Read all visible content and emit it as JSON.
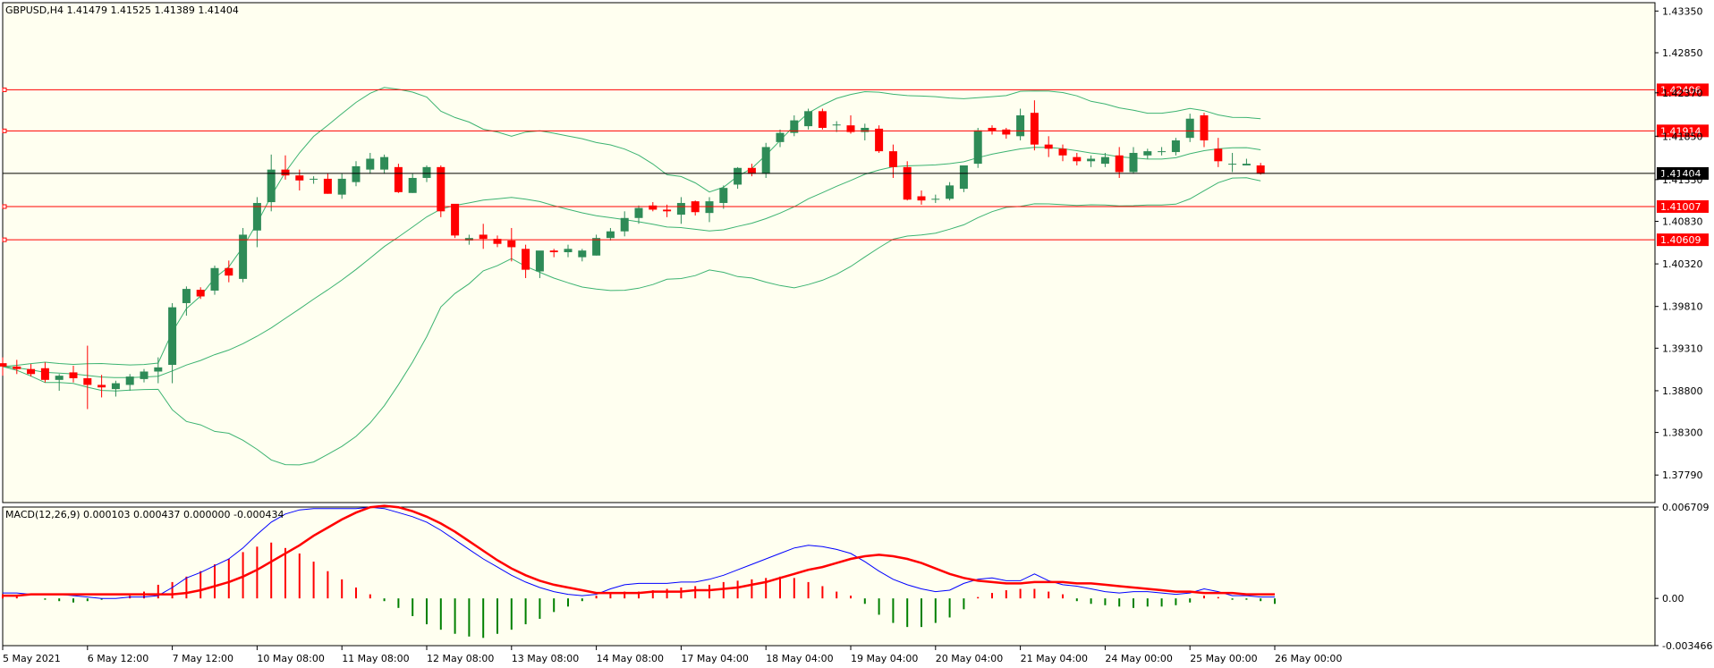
{
  "chart_data": [
    {
      "type": "candlestick",
      "symbol": "GBPUSD,H4",
      "title": "GBPUSD,H4  1.41479 1.41525 1.41389 1.41404",
      "ohlc_text": "1.41479 1.41525 1.41389 1.41404",
      "last_price": "1.41404",
      "yticks": [
        "1.43350",
        "1.42850",
        "1.42370",
        "1.41850",
        "1.41330",
        "1.40830",
        "1.40320",
        "1.39810",
        "1.39310",
        "1.38800",
        "1.38300",
        "1.37790"
      ],
      "ylim": [
        1.3746,
        1.4345
      ],
      "xticks": [
        "5 May 2021",
        "6 May 12:00",
        "7 May 12:00",
        "10 May 08:00",
        "11 May 08:00",
        "12 May 08:00",
        "13 May 08:00",
        "14 May 08:00",
        "17 May 04:00",
        "18 May 04:00",
        "19 May 04:00",
        "20 May 04:00",
        "21 May 04:00",
        "24 May 00:00",
        "25 May 00:00",
        "26 May 00:00"
      ],
      "horizontal_levels": [
        {
          "label": "1.42406",
          "value": 1.42406,
          "color": "#ff0000"
        },
        {
          "label": "1.41914",
          "value": 1.41914,
          "color": "#ff0000"
        },
        {
          "label": "1.41007",
          "value": 1.41007,
          "color": "#ff0000"
        },
        {
          "label": "1.40609",
          "value": 1.40609,
          "color": "#ff0000"
        }
      ],
      "colors": {
        "bull": "#2e8b57",
        "bear": "#ff0000",
        "bands": "#3cb371",
        "background": "#fffff0",
        "price_line": "#000000"
      },
      "candles": [
        [
          1.3913,
          1.392,
          1.3898,
          1.3909
        ],
        [
          1.3909,
          1.3917,
          1.39,
          1.3906
        ],
        [
          1.3906,
          1.3912,
          1.3897,
          1.39
        ],
        [
          1.3907,
          1.3914,
          1.389,
          1.3893
        ],
        [
          1.3893,
          1.39,
          1.388,
          1.3898
        ],
        [
          1.3902,
          1.391,
          1.389,
          1.3895
        ],
        [
          1.3895,
          1.3934,
          1.3858,
          1.3887
        ],
        [
          1.3887,
          1.3899,
          1.3872,
          1.3884
        ],
        [
          1.3882,
          1.3892,
          1.3873,
          1.3889
        ],
        [
          1.3887,
          1.39,
          1.388,
          1.3897
        ],
        [
          1.3894,
          1.3906,
          1.389,
          1.3903
        ],
        [
          1.3903,
          1.392,
          1.3889,
          1.3908
        ],
        [
          1.3911,
          1.3985,
          1.3889,
          1.398
        ],
        [
          1.3985,
          1.4005,
          1.397,
          1.4002
        ],
        [
          1.4001,
          1.4004,
          1.399,
          1.3993
        ],
        [
          1.4,
          1.403,
          1.3995,
          1.4027
        ],
        [
          1.4027,
          1.4036,
          1.401,
          1.4018
        ],
        [
          1.4014,
          1.4075,
          1.401,
          1.4067
        ],
        [
          1.4072,
          1.4112,
          1.4052,
          1.4105
        ],
        [
          1.4106,
          1.4163,
          1.4095,
          1.4145
        ],
        [
          1.4145,
          1.4162,
          1.4133,
          1.4138
        ],
        [
          1.4138,
          1.4145,
          1.412,
          1.4132
        ],
        [
          1.4133,
          1.4137,
          1.4128,
          1.4134
        ],
        [
          1.4134,
          1.414,
          1.4116,
          1.4116
        ],
        [
          1.4115,
          1.414,
          1.411,
          1.4134
        ],
        [
          1.413,
          1.4155,
          1.4125,
          1.4149
        ],
        [
          1.4145,
          1.4165,
          1.414,
          1.4158
        ],
        [
          1.4145,
          1.4163,
          1.414,
          1.416
        ],
        [
          1.4148,
          1.4152,
          1.4117,
          1.4118
        ],
        [
          1.4117,
          1.414,
          1.4117,
          1.4135
        ],
        [
          1.4135,
          1.415,
          1.413,
          1.4148
        ],
        [
          1.4148,
          1.415,
          1.4088,
          1.4095
        ],
        [
          1.4104,
          1.4102,
          1.4063,
          1.4066
        ],
        [
          1.406,
          1.4067,
          1.4055,
          1.4063
        ],
        [
          1.4067,
          1.408,
          1.405,
          1.4062
        ],
        [
          1.4062,
          1.4066,
          1.4052,
          1.4056
        ],
        [
          1.406,
          1.4075,
          1.4035,
          1.4052
        ],
        [
          1.405,
          1.4055,
          1.4015,
          1.4025
        ],
        [
          1.4023,
          1.4045,
          1.4015,
          1.4048
        ],
        [
          1.4048,
          1.405,
          1.404,
          1.4046
        ],
        [
          1.4046,
          1.4055,
          1.404,
          1.405
        ],
        [
          1.404,
          1.405,
          1.4035,
          1.4048
        ],
        [
          1.4042,
          1.4067,
          1.4042,
          1.4063
        ],
        [
          1.4063,
          1.4075,
          1.406,
          1.4071
        ],
        [
          1.4071,
          1.4095,
          1.4065,
          1.4087
        ],
        [
          1.4087,
          1.4102,
          1.408,
          1.4099
        ],
        [
          1.4102,
          1.4106,
          1.4095,
          1.4097
        ],
        [
          1.4097,
          1.4103,
          1.4088,
          1.4095
        ],
        [
          1.4091,
          1.4112,
          1.408,
          1.4105
        ],
        [
          1.4107,
          1.4108,
          1.409,
          1.4094
        ],
        [
          1.4093,
          1.4112,
          1.4082,
          1.4107
        ],
        [
          1.4105,
          1.4126,
          1.4098,
          1.4123
        ],
        [
          1.4127,
          1.4148,
          1.4122,
          1.4147
        ],
        [
          1.4147,
          1.4152,
          1.4137,
          1.414
        ],
        [
          1.414,
          1.4177,
          1.4135,
          1.4172
        ],
        [
          1.4178,
          1.4193,
          1.4172,
          1.4189
        ],
        [
          1.4189,
          1.421,
          1.4185,
          1.4204
        ],
        [
          1.4197,
          1.4218,
          1.4193,
          1.4215
        ],
        [
          1.4215,
          1.4218,
          1.4193,
          1.4195
        ],
        [
          1.4198,
          1.4203,
          1.419,
          1.4199
        ],
        [
          1.4198,
          1.421,
          1.4188,
          1.419
        ],
        [
          1.419,
          1.42,
          1.418,
          1.4195
        ],
        [
          1.4194,
          1.4198,
          1.4165,
          1.4167
        ],
        [
          1.4167,
          1.4175,
          1.4135,
          1.4148
        ],
        [
          1.4148,
          1.4155,
          1.4108,
          1.4109
        ],
        [
          1.4113,
          1.412,
          1.4103,
          1.4108
        ],
        [
          1.4109,
          1.4115,
          1.4105,
          1.411
        ],
        [
          1.411,
          1.413,
          1.4108,
          1.4126
        ],
        [
          1.4122,
          1.415,
          1.4118,
          1.415
        ],
        [
          1.4152,
          1.4195,
          1.4147,
          1.4192
        ],
        [
          1.4195,
          1.4198,
          1.4187,
          1.4191
        ],
        [
          1.4193,
          1.4195,
          1.4182,
          1.4187
        ],
        [
          1.4185,
          1.4218,
          1.418,
          1.421
        ],
        [
          1.4213,
          1.4228,
          1.4168,
          1.4175
        ],
        [
          1.4175,
          1.4185,
          1.416,
          1.417
        ],
        [
          1.417,
          1.4175,
          1.4155,
          1.4162
        ],
        [
          1.416,
          1.4165,
          1.415,
          1.4155
        ],
        [
          1.4155,
          1.4162,
          1.4148,
          1.4158
        ],
        [
          1.4152,
          1.4165,
          1.4148,
          1.416
        ],
        [
          1.4162,
          1.4172,
          1.4135,
          1.4142
        ],
        [
          1.4142,
          1.4172,
          1.414,
          1.4165
        ],
        [
          1.4162,
          1.417,
          1.4158,
          1.4167
        ],
        [
          1.4166,
          1.4172,
          1.4162,
          1.4167
        ],
        [
          1.4166,
          1.4183,
          1.4162,
          1.418
        ],
        [
          1.4183,
          1.4212,
          1.4178,
          1.4206
        ],
        [
          1.421,
          1.4213,
          1.4172,
          1.418
        ],
        [
          1.417,
          1.4183,
          1.4148,
          1.4155
        ],
        [
          1.4152,
          1.4165,
          1.4142,
          1.4152
        ],
        [
          1.415,
          1.4158,
          1.415,
          1.4152
        ],
        [
          1.415,
          1.4153,
          1.4139,
          1.414
        ]
      ]
    },
    {
      "type": "line",
      "title": "MACD(12,26,9) 0.000103 0.000437 0.000000 -0.000434",
      "yticks": [
        "0.006709",
        "0.00",
        "-0.003466"
      ],
      "ylim": [
        -0.00347,
        0.00671
      ],
      "series": [
        {
          "name": "main",
          "color": "#0000ff",
          "values": [
            0.0004,
            0.0004,
            0.0003,
            0.0003,
            0.0003,
            0.0002,
            0.0001,
            0.0,
            0.0,
            0.0001,
            0.0001,
            0.0002,
            0.0008,
            0.0015,
            0.0019,
            0.0024,
            0.0029,
            0.0037,
            0.0047,
            0.0056,
            0.0062,
            0.0065,
            0.0066,
            0.0066,
            0.0066,
            0.0066,
            0.0067,
            0.0066,
            0.0063,
            0.006,
            0.0056,
            0.005,
            0.0043,
            0.0036,
            0.0029,
            0.0023,
            0.0017,
            0.0012,
            0.0008,
            0.0005,
            0.0003,
            0.0002,
            0.0003,
            0.0007,
            0.001,
            0.0011,
            0.0011,
            0.0011,
            0.0012,
            0.0012,
            0.0014,
            0.0017,
            0.0021,
            0.0025,
            0.0029,
            0.0033,
            0.0037,
            0.0039,
            0.0038,
            0.0036,
            0.0033,
            0.0027,
            0.002,
            0.0014,
            0.001,
            0.0007,
            0.0005,
            0.0006,
            0.0011,
            0.0014,
            0.0015,
            0.0013,
            0.0013,
            0.0018,
            0.0013,
            0.001,
            0.0009,
            0.0007,
            0.0005,
            0.0004,
            0.0005,
            0.0005,
            0.0004,
            0.0003,
            0.0004,
            0.0007,
            0.0005,
            0.0002,
            0.0002,
            0.0001,
            0.0001
          ]
        },
        {
          "name": "signal",
          "color": "#ff0000",
          "values": [
            0.0002,
            0.0002,
            0.0003,
            0.0003,
            0.0003,
            0.0003,
            0.0003,
            0.0003,
            0.0003,
            0.0003,
            0.0003,
            0.0003,
            0.0003,
            0.0004,
            0.0006,
            0.0009,
            0.0012,
            0.0016,
            0.0021,
            0.0027,
            0.0033,
            0.0039,
            0.0046,
            0.0052,
            0.0058,
            0.0063,
            0.0067,
            0.0068,
            0.0067,
            0.0064,
            0.006,
            0.0055,
            0.0049,
            0.0042,
            0.0035,
            0.0028,
            0.0022,
            0.0017,
            0.0013,
            0.001,
            0.0008,
            0.0006,
            0.0004,
            0.0004,
            0.0004,
            0.0004,
            0.0005,
            0.0005,
            0.0005,
            0.0006,
            0.0006,
            0.0007,
            0.0008,
            0.001,
            0.0012,
            0.0015,
            0.0018,
            0.0021,
            0.0023,
            0.0026,
            0.0029,
            0.0031,
            0.0032,
            0.0031,
            0.0029,
            0.0026,
            0.0022,
            0.0018,
            0.0015,
            0.0013,
            0.0012,
            0.0011,
            0.0011,
            0.0012,
            0.0012,
            0.0012,
            0.0011,
            0.0011,
            0.001,
            0.0009,
            0.0008,
            0.0007,
            0.0006,
            0.0005,
            0.0005,
            0.0004,
            0.0004,
            0.0004,
            0.0003,
            0.0003,
            0.0003
          ]
        },
        {
          "name": "histogram",
          "color": "#008000",
          "values": [
            0.0003,
            0.0002,
            0.0,
            -0.0001,
            -0.0002,
            -0.0003,
            -0.0002,
            -0.0001,
            0.0,
            0.0002,
            0.0005,
            0.001,
            0.0012,
            0.0016,
            0.002,
            0.0025,
            0.0029,
            0.0034,
            0.0038,
            0.0041,
            0.0037,
            0.0033,
            0.0027,
            0.002,
            0.0014,
            0.0008,
            0.0003,
            -0.0002,
            -0.0007,
            -0.0013,
            -0.0019,
            -0.0023,
            -0.0026,
            -0.0028,
            -0.0029,
            -0.0026,
            -0.0023,
            -0.0019,
            -0.0015,
            -0.001,
            -0.0006,
            -0.0002,
            0.0002,
            0.0004,
            0.0005,
            0.0005,
            0.0006,
            0.0007,
            0.0008,
            0.0009,
            0.001,
            0.0012,
            0.0013,
            0.0014,
            0.0015,
            0.0016,
            0.0015,
            0.0012,
            0.0009,
            0.0005,
            0.0002,
            -0.0004,
            -0.0012,
            -0.0018,
            -0.0021,
            -0.0021,
            -0.0018,
            -0.0014,
            -0.0008,
            0.0001,
            0.0004,
            0.0006,
            0.0007,
            0.0007,
            0.0005,
            0.0003,
            -0.0002,
            -0.0004,
            -0.0005,
            -0.0006,
            -0.0007,
            -0.0006,
            -0.0006,
            -0.0005,
            -0.0003,
            0.0002,
            0.0001,
            -0.0001,
            -0.0001,
            -0.0002,
            -0.0004
          ]
        }
      ]
    }
  ]
}
